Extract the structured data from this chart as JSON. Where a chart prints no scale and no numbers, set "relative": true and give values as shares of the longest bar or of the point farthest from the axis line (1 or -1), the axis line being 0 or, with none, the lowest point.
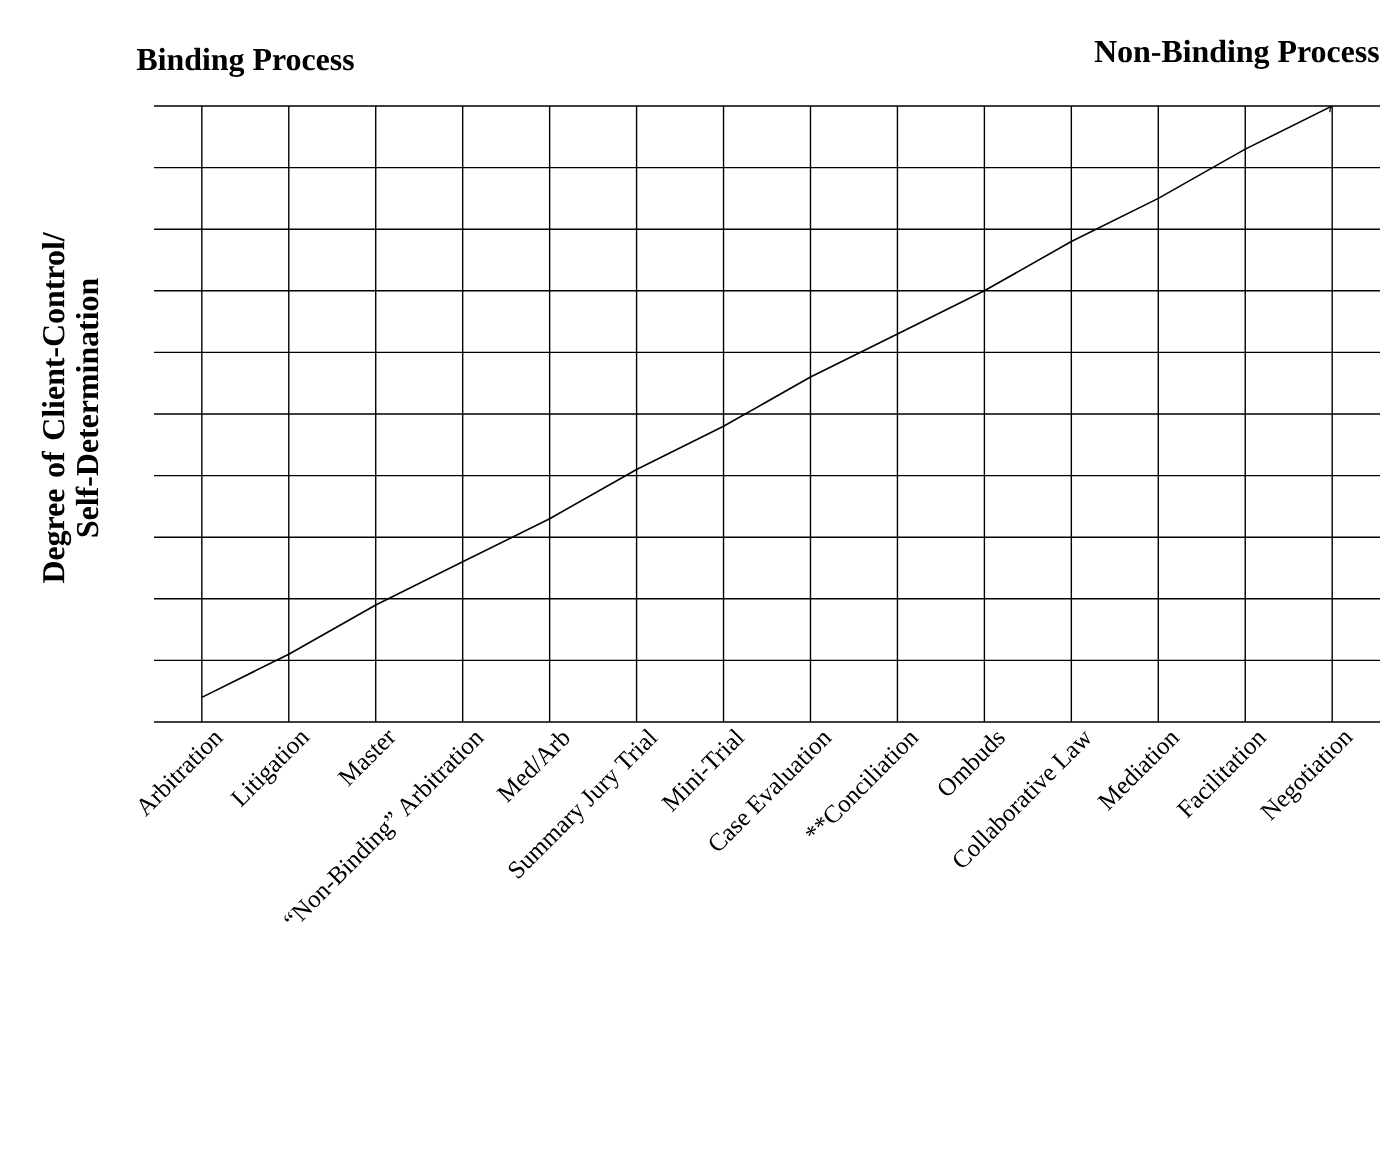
{
  "chart_data": {
    "type": "line",
    "relative": true,
    "grid": true,
    "color": "#000000",
    "ylabel": "Degree of Client-Control/ Self-Determination",
    "annotations": [
      "Binding Process",
      "Non-Binding Process"
    ],
    "categories": [
      "Arbitration",
      "Litigation",
      "Master",
      "“Non-Binding” Arbitration",
      "Med/Arb",
      "Summary Jury Trial",
      "Mini-Trial",
      "Case Evaluation",
      "**Conciliation",
      "Ombuds",
      "Collaborative Law",
      "Mediation",
      "Facilitation",
      "Negotiation"
    ],
    "values": [
      0.04,
      0.11,
      0.19,
      0.26,
      0.33,
      0.41,
      0.48,
      0.56,
      0.63,
      0.7,
      0.78,
      0.85,
      0.93,
      1.0
    ]
  }
}
